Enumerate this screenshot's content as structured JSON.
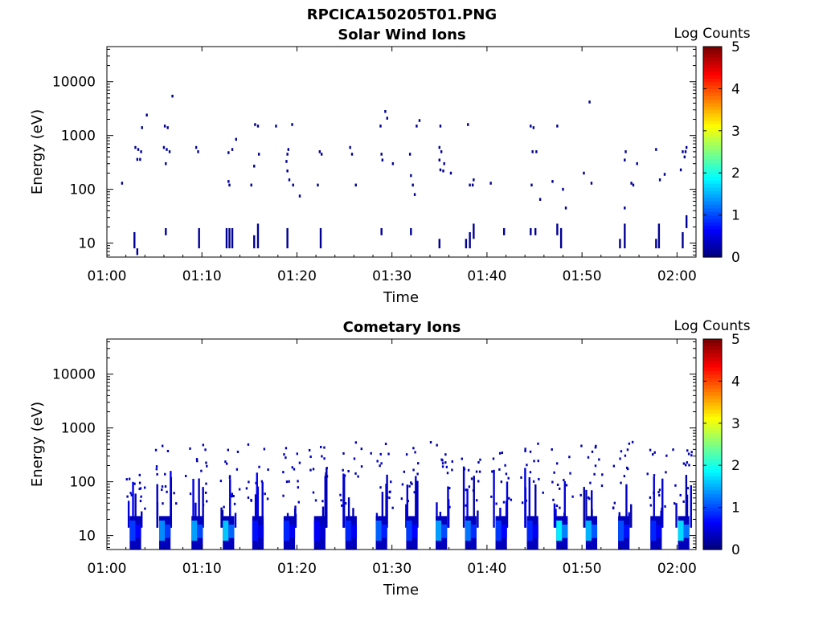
{
  "figure_title": "RPCICA150205T01.PNG",
  "colors": {
    "colormap": [
      "#000080",
      "#0000ff",
      "#0080ff",
      "#00ffff",
      "#80ff80",
      "#ffff00",
      "#ff8000",
      "#ff0000",
      "#800000"
    ],
    "axis": "#000000",
    "background": "#ffffff"
  },
  "chart_data": [
    {
      "type": "heatmap",
      "title": "Solar Wind Ions",
      "xlabel": "Time",
      "ylabel": "Energy (eV)",
      "xticks": [
        "01:00",
        "01:10",
        "01:20",
        "01:30",
        "01:40",
        "01:50",
        "02:00"
      ],
      "xrange_minutes": [
        0,
        62
      ],
      "yticks": [
        "10",
        "100",
        "1000",
        "10000"
      ],
      "ylim": [
        5.5,
        45000
      ],
      "yscale": "log",
      "colorbar": {
        "label": "Log Counts",
        "ticks": [
          "0",
          "1",
          "2",
          "3",
          "4",
          "5"
        ],
        "range": [
          0,
          5
        ]
      },
      "cells": [
        [
          3.0,
          600,
          0.1
        ],
        [
          3.3,
          550,
          0.1
        ],
        [
          3.6,
          500,
          0.1
        ],
        [
          3.2,
          360,
          0.1
        ],
        [
          3.5,
          360,
          0.1
        ],
        [
          3.7,
          1400,
          0.1
        ],
        [
          4.2,
          2400,
          0.1
        ],
        [
          1.6,
          130,
          0.1
        ],
        [
          6.1,
          1500,
          0.1
        ],
        [
          6.4,
          1400,
          0.1
        ],
        [
          6.0,
          600,
          0.1
        ],
        [
          6.3,
          550,
          0.1
        ],
        [
          6.6,
          500,
          0.1
        ],
        [
          6.2,
          300,
          0.1
        ],
        [
          6.9,
          5400,
          0.1
        ],
        [
          9.4,
          600,
          0.1
        ],
        [
          9.6,
          500,
          0.1
        ],
        [
          12.8,
          480,
          0.1
        ],
        [
          13.2,
          550,
          0.1
        ],
        [
          13.6,
          850,
          0.1
        ],
        [
          12.9,
          120,
          0.1
        ],
        [
          12.8,
          140,
          0.1
        ],
        [
          15.6,
          1600,
          0.1
        ],
        [
          15.9,
          1500,
          0.1
        ],
        [
          15.5,
          270,
          0.1
        ],
        [
          16.0,
          450,
          0.1
        ],
        [
          15.2,
          120,
          0.1
        ],
        [
          19.1,
          550,
          0.1
        ],
        [
          19.0,
          450,
          0.1
        ],
        [
          18.9,
          330,
          0.1
        ],
        [
          19.0,
          220,
          0.1
        ],
        [
          19.2,
          150,
          0.1
        ],
        [
          19.6,
          120,
          0.1
        ],
        [
          20.3,
          75,
          0.1
        ],
        [
          19.5,
          1600,
          0.1
        ],
        [
          17.8,
          1500,
          0.1
        ],
        [
          22.4,
          500,
          0.1
        ],
        [
          22.6,
          450,
          0.1
        ],
        [
          22.2,
          120,
          0.1
        ],
        [
          25.6,
          600,
          0.1
        ],
        [
          25.8,
          450,
          0.1
        ],
        [
          26.2,
          120,
          0.1
        ],
        [
          28.8,
          1500,
          0.1
        ],
        [
          28.9,
          450,
          0.1
        ],
        [
          29.0,
          350,
          0.1
        ],
        [
          29.3,
          2800,
          0.1
        ],
        [
          29.5,
          2100,
          0.1
        ],
        [
          30.1,
          300,
          0.1
        ],
        [
          31.9,
          450,
          0.1
        ],
        [
          32.0,
          180,
          0.1
        ],
        [
          32.2,
          120,
          0.1
        ],
        [
          32.4,
          80,
          0.1
        ],
        [
          32.6,
          1500,
          0.1
        ],
        [
          32.9,
          1900,
          0.1
        ],
        [
          35.0,
          600,
          0.1
        ],
        [
          35.2,
          500,
          0.1
        ],
        [
          35.1,
          1500,
          0.1
        ],
        [
          35.0,
          350,
          0.1
        ],
        [
          35.1,
          230,
          0.1
        ],
        [
          35.5,
          300,
          0.1
        ],
        [
          35.4,
          220,
          0.1
        ],
        [
          36.2,
          200,
          0.1
        ],
        [
          38.0,
          1600,
          0.1
        ],
        [
          38.2,
          120,
          0.1
        ],
        [
          38.5,
          120,
          0.1
        ],
        [
          38.6,
          150,
          0.1
        ],
        [
          40.4,
          130,
          0.1
        ],
        [
          44.6,
          1500,
          0.1
        ],
        [
          44.9,
          1400,
          0.1
        ],
        [
          44.8,
          500,
          0.1
        ],
        [
          45.2,
          500,
          0.1
        ],
        [
          44.7,
          120,
          0.1
        ],
        [
          45.6,
          65,
          0.1
        ],
        [
          46.9,
          140,
          0.1
        ],
        [
          47.4,
          1500,
          0.1
        ],
        [
          48.0,
          100,
          0.1
        ],
        [
          48.3,
          45,
          0.1
        ],
        [
          50.8,
          4200,
          0.1
        ],
        [
          50.2,
          200,
          0.1
        ],
        [
          51.0,
          130,
          0.1
        ],
        [
          54.5,
          350,
          0.1
        ],
        [
          54.6,
          500,
          0.1
        ],
        [
          54.5,
          45,
          0.1
        ],
        [
          55.2,
          130,
          0.1
        ],
        [
          55.4,
          120,
          0.1
        ],
        [
          55.8,
          300,
          0.1
        ],
        [
          57.8,
          550,
          0.1
        ],
        [
          58.2,
          150,
          0.1
        ],
        [
          58.7,
          190,
          0.1
        ],
        [
          60.6,
          500,
          0.1
        ],
        [
          60.9,
          500,
          0.1
        ],
        [
          60.8,
          400,
          0.1
        ],
        [
          60.4,
          230,
          0.1
        ],
        [
          61.0,
          600,
          0.1
        ]
      ],
      "columns": [
        [
          2.9,
          8,
          16,
          0.1
        ],
        [
          3.2,
          6,
          8,
          0.1
        ],
        [
          6.2,
          14,
          19,
          0.1
        ],
        [
          9.7,
          8,
          19,
          0.1
        ],
        [
          12.6,
          8,
          19,
          0.1
        ],
        [
          12.9,
          8,
          19,
          0.1
        ],
        [
          13.2,
          8,
          19,
          0.1
        ],
        [
          15.5,
          8,
          14,
          0.1
        ],
        [
          15.9,
          8,
          23,
          0.1
        ],
        [
          19.0,
          8,
          19,
          0.1
        ],
        [
          22.5,
          8,
          19,
          0.1
        ],
        [
          28.9,
          14,
          19,
          0.1
        ],
        [
          32.0,
          14,
          19,
          0.1
        ],
        [
          35.0,
          8,
          12,
          0.1
        ],
        [
          37.8,
          8,
          12,
          0.1
        ],
        [
          38.2,
          8,
          16,
          0.1
        ],
        [
          38.6,
          12,
          23,
          0.1
        ],
        [
          41.8,
          14,
          19,
          0.1
        ],
        [
          44.6,
          14,
          19,
          0.1
        ],
        [
          45.1,
          14,
          19,
          0.1
        ],
        [
          47.4,
          14,
          23,
          0.1
        ],
        [
          47.8,
          8,
          19,
          0.1
        ],
        [
          54.0,
          8,
          12,
          0.1
        ],
        [
          54.5,
          8,
          23,
          0.1
        ],
        [
          57.8,
          8,
          12,
          0.1
        ],
        [
          58.1,
          8,
          23,
          0.1
        ],
        [
          60.6,
          8,
          16,
          0.1
        ],
        [
          61.0,
          19,
          33,
          0.1
        ]
      ]
    },
    {
      "type": "heatmap",
      "title": "Cometary Ions",
      "xlabel": "Time",
      "ylabel": "Energy (eV)",
      "xticks": [
        "01:00",
        "01:10",
        "01:20",
        "01:30",
        "01:40",
        "01:50",
        "02:00"
      ],
      "xrange_minutes": [
        0,
        62
      ],
      "yticks": [
        "10",
        "100",
        "1000",
        "10000"
      ],
      "ylim": [
        5.5,
        45000
      ],
      "yscale": "log",
      "colorbar": {
        "label": "Log Counts",
        "ticks": [
          "0",
          "1",
          "2",
          "3",
          "4",
          "5"
        ],
        "range": [
          0,
          5
        ]
      },
      "bursts": [
        {
          "t": 3.0,
          "top": 150,
          "core": 0.9
        },
        {
          "t": 6.1,
          "top": 550,
          "core": 1.3
        },
        {
          "t": 9.5,
          "top": 550,
          "core": 1.4
        },
        {
          "t": 12.8,
          "top": 450,
          "core": 1.6
        },
        {
          "t": 15.9,
          "top": 500,
          "core": 0.7
        },
        {
          "t": 19.2,
          "top": 450,
          "core": 0.8
        },
        {
          "t": 22.4,
          "top": 500,
          "core": 0.6
        },
        {
          "t": 25.7,
          "top": 600,
          "core": 0.8
        },
        {
          "t": 28.9,
          "top": 550,
          "core": 1.1
        },
        {
          "t": 32.1,
          "top": 500,
          "core": 0.9
        },
        {
          "t": 35.2,
          "top": 550,
          "core": 1.4
        },
        {
          "t": 38.3,
          "top": 400,
          "core": 1.2
        },
        {
          "t": 41.5,
          "top": 350,
          "core": 0.9
        },
        {
          "t": 44.8,
          "top": 550,
          "core": 0.8
        },
        {
          "t": 47.9,
          "top": 500,
          "core": 1.8
        },
        {
          "t": 51.0,
          "top": 550,
          "core": 1.5
        },
        {
          "t": 54.4,
          "top": 600,
          "core": 1.0
        },
        {
          "t": 57.8,
          "top": 500,
          "core": 0.8
        },
        {
          "t": 60.7,
          "top": 450,
          "core": 1.7
        }
      ]
    }
  ]
}
